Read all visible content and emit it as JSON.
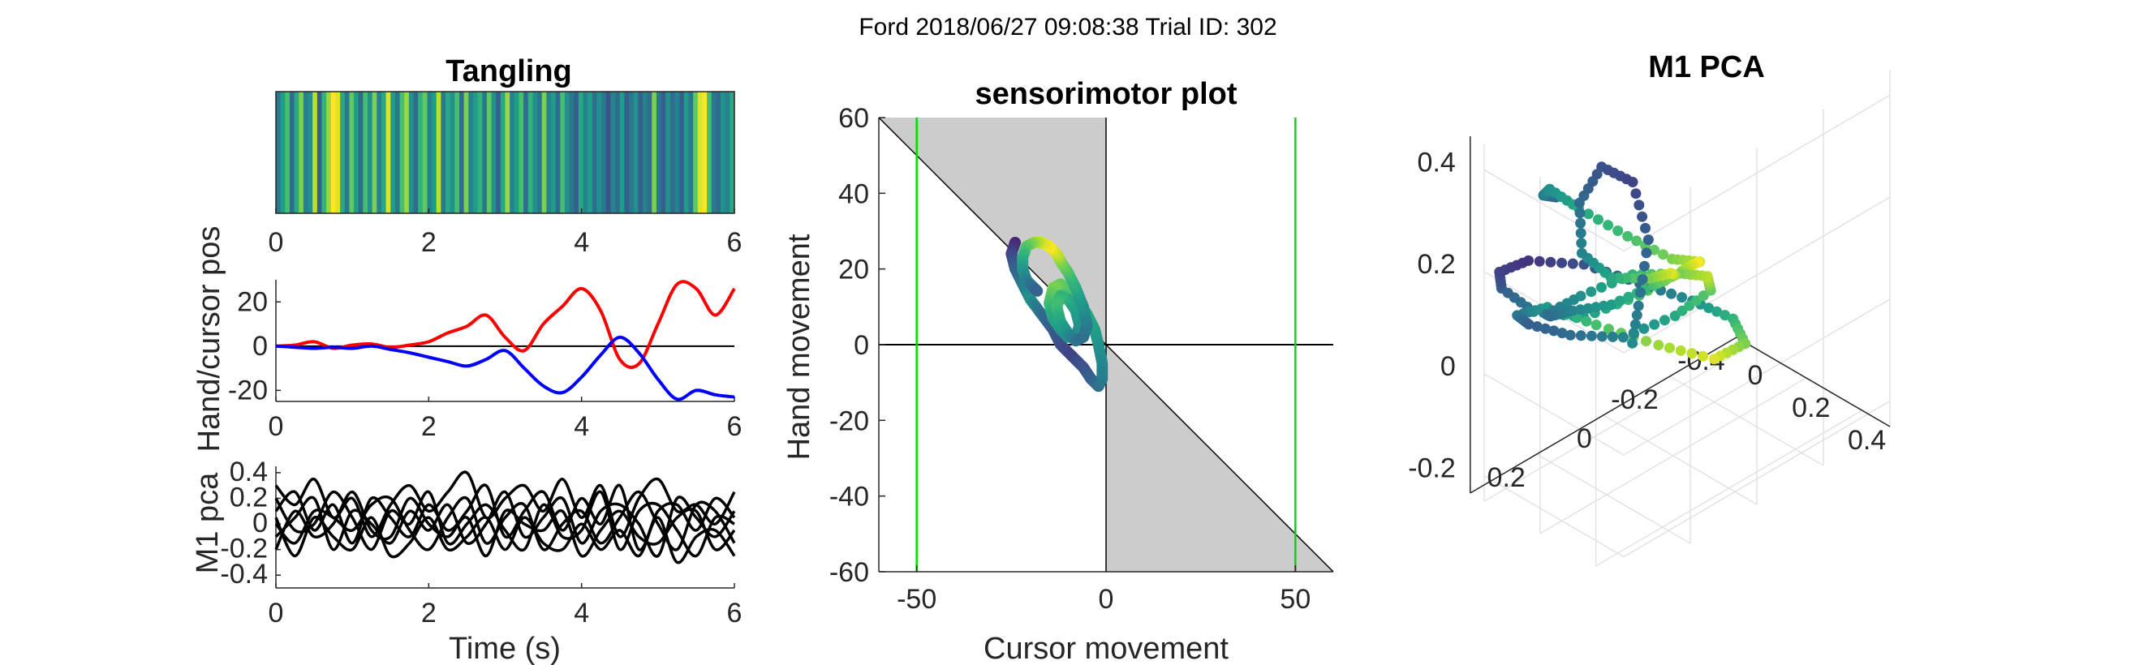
{
  "figure_title": "Ford 2018/06/27 09:08:38 Trial ID: 302",
  "chart_data": [
    {
      "type": "heatmap",
      "title": "Tangling",
      "xlim": [
        0,
        6
      ],
      "xticks": [
        "0",
        "2",
        "4",
        "6"
      ],
      "colormap": "viridis",
      "values": [
        0.4,
        0.55,
        0.7,
        0.35,
        0.6,
        0.8,
        0.45,
        0.5,
        0.9,
        0.3,
        0.65,
        0.85,
        1.0,
        0.95,
        0.6,
        0.4,
        0.75,
        0.55,
        0.35,
        0.7,
        0.5,
        0.8,
        0.45,
        0.6,
        0.95,
        0.55,
        0.4,
        0.7,
        0.85,
        0.5,
        0.35,
        0.65,
        0.75,
        0.45,
        0.55,
        0.9,
        0.4,
        0.6,
        0.5,
        0.7,
        0.35,
        0.8,
        0.45,
        0.55,
        0.65,
        0.4,
        0.75,
        0.5,
        0.3,
        0.6,
        0.85,
        0.45,
        0.55,
        0.7,
        0.35,
        0.65,
        0.5,
        0.4,
        0.8,
        0.45,
        0.55,
        0.35,
        0.7,
        0.5,
        0.4,
        0.3,
        0.6,
        0.45,
        0.55,
        0.35,
        0.5,
        0.4,
        0.25,
        0.45,
        0.35,
        0.55,
        0.3,
        0.4,
        0.5,
        0.3,
        0.45,
        0.35,
        0.8,
        0.4,
        0.3,
        0.5,
        0.35,
        0.45,
        0.3,
        0.55,
        0.4,
        0.75,
        0.95,
        1.0,
        0.7,
        0.4,
        0.35,
        0.5,
        0.45,
        0.6
      ]
    },
    {
      "type": "line",
      "ylabel": "Hand/cursor pos",
      "xlim": [
        0,
        6
      ],
      "ylim": [
        -25,
        30
      ],
      "xticks": [
        "0",
        "2",
        "4",
        "6"
      ],
      "yticks": [
        "-20",
        "0",
        "20"
      ],
      "zero_line": true,
      "series": [
        {
          "color": "#ff0000",
          "x": [
            0,
            0.25,
            0.5,
            0.75,
            1,
            1.25,
            1.5,
            1.75,
            2,
            2.25,
            2.5,
            2.75,
            3,
            3.25,
            3.5,
            3.75,
            4,
            4.25,
            4.5,
            4.75,
            5,
            5.25,
            5.5,
            5.75,
            6
          ],
          "y": [
            0,
            0.5,
            2,
            -1,
            0.5,
            1,
            -0.5,
            0.5,
            2,
            6,
            9,
            14,
            4,
            -2,
            10,
            18,
            26,
            16,
            -6,
            -8,
            10,
            28,
            26,
            14,
            26
          ]
        },
        {
          "color": "#0000ff",
          "x": [
            0,
            0.25,
            0.5,
            0.75,
            1,
            1.25,
            1.5,
            1.75,
            2,
            2.25,
            2.5,
            2.75,
            3,
            3.25,
            3.5,
            3.75,
            4,
            4.25,
            4.5,
            4.75,
            5,
            5.25,
            5.5,
            5.75,
            6
          ],
          "y": [
            0,
            -0.5,
            -1,
            -0.5,
            -1,
            0,
            -1.5,
            -3,
            -5,
            -7,
            -9,
            -6,
            -2,
            -10,
            -18,
            -21,
            -14,
            -4,
            4,
            -3,
            -15,
            -24,
            -20,
            -22,
            -23
          ]
        }
      ]
    },
    {
      "type": "line",
      "ylabel": "M1 pca",
      "xlabel": "Time (s)",
      "xlim": [
        0,
        6
      ],
      "ylim": [
        -0.5,
        0.45
      ],
      "xticks": [
        "0",
        "2",
        "4",
        "6"
      ],
      "yticks": [
        "0.4",
        "0.2",
        "0",
        "-0.2",
        "-0.4"
      ],
      "series_color": "#000000",
      "x": [
        0,
        0.25,
        0.5,
        0.75,
        1,
        1.25,
        1.5,
        1.75,
        2,
        2.25,
        2.5,
        2.75,
        3,
        3.25,
        3.5,
        3.75,
        4,
        4.25,
        4.5,
        4.75,
        5,
        5.25,
        5.5,
        5.75,
        6
      ],
      "series": [
        {
          "y": [
            0.3,
            0.15,
            0.35,
            0.05,
            0.2,
            -0.1,
            0.15,
            0.3,
            0.1,
            0.25,
            0.4,
            0.05,
            0.2,
            0.3,
            0.1,
            0.35,
            0.05,
            0.3,
            -0.1,
            0.2,
            0.35,
            0.1,
            0.15,
            0.0,
            0.25
          ]
        },
        {
          "y": [
            0.1,
            0.25,
            -0.05,
            0.15,
            -0.15,
            0.2,
            0.05,
            -0.1,
            0.15,
            -0.05,
            0.1,
            0.3,
            -0.1,
            0.1,
            0.25,
            -0.05,
            0.2,
            0.0,
            0.3,
            -0.2,
            0.1,
            0.15,
            -0.05,
            0.2,
            0.05
          ]
        },
        {
          "y": [
            -0.1,
            0.05,
            0.2,
            -0.2,
            0.1,
            0.0,
            -0.15,
            0.1,
            -0.05,
            0.15,
            -0.15,
            0.0,
            0.25,
            -0.1,
            0.05,
            0.2,
            -0.15,
            0.1,
            0.15,
            0.0,
            -0.25,
            0.2,
            0.05,
            -0.1,
            0.1
          ]
        },
        {
          "y": [
            0.0,
            -0.15,
            0.1,
            0.05,
            -0.05,
            0.15,
            0.2,
            -0.05,
            -0.2,
            0.05,
            0.2,
            -0.15,
            0.05,
            0.15,
            -0.2,
            0.0,
            0.1,
            -0.15,
            0.05,
            0.25,
            0.0,
            -0.2,
            0.15,
            0.1,
            -0.15
          ]
        },
        {
          "y": [
            0.2,
            -0.05,
            0.0,
            0.25,
            0.05,
            -0.2,
            0.1,
            0.0,
            0.25,
            -0.15,
            0.0,
            0.15,
            -0.05,
            -0.2,
            0.15,
            -0.1,
            -0.05,
            0.25,
            -0.2,
            0.1,
            0.15,
            -0.05,
            -0.25,
            0.05,
            0.0
          ]
        },
        {
          "y": [
            -0.2,
            0.1,
            -0.1,
            0.0,
            0.25,
            -0.05,
            -0.1,
            0.2,
            0.0,
            -0.1,
            0.05,
            -0.25,
            0.1,
            0.0,
            -0.05,
            0.1,
            -0.25,
            -0.05,
            0.1,
            -0.1,
            -0.15,
            0.05,
            0.1,
            -0.2,
            -0.05
          ]
        },
        {
          "y": [
            0.05,
            -0.25,
            0.05,
            -0.1,
            -0.2,
            0.05,
            -0.25,
            -0.15,
            0.05,
            -0.2,
            -0.1,
            0.05,
            -0.2,
            0.05,
            -0.15,
            -0.2,
            0.0,
            -0.2,
            -0.05,
            -0.25,
            0.05,
            -0.3,
            -0.1,
            -0.05,
            -0.25
          ]
        }
      ]
    },
    {
      "type": "scatter",
      "title": "sensorimotor plot",
      "xlabel": "Cursor movement",
      "ylabel": "Hand movement",
      "xlim": [
        -60,
        60
      ],
      "ylim": [
        -60,
        60
      ],
      "xticks": [
        "-50",
        "0",
        "50"
      ],
      "yticks": [
        "60",
        "40",
        "20",
        "0",
        "-20",
        "-40",
        "-60"
      ],
      "vertical_lines_color": "#00dd00",
      "vertical_lines_x": [
        -50,
        50
      ],
      "shaded_regions": "gray region between line y = -x and x = 0",
      "colormap": "viridis",
      "x": [
        -24,
        -25,
        -24,
        -22,
        -20,
        -17,
        -14,
        -12,
        -9,
        -6,
        -4,
        -2,
        -1,
        -1,
        -2,
        -3,
        -5,
        -7,
        -10,
        -12,
        -14,
        -15,
        -14,
        -12,
        -10,
        -8,
        -7,
        -8,
        -10,
        -12,
        -13,
        -12,
        -10,
        -8,
        -6,
        -5,
        -6,
        -8,
        -10,
        -12,
        -13,
        -15,
        -17,
        -19,
        -21,
        -22,
        -22,
        -21,
        -19,
        -18
      ],
      "y": [
        27,
        24,
        20,
        16,
        12,
        8,
        4,
        0,
        -3,
        -6,
        -9,
        -11,
        -9,
        -5,
        0,
        4,
        8,
        11,
        14,
        16,
        15,
        11,
        7,
        4,
        2,
        2,
        5,
        9,
        12,
        13,
        10,
        6,
        3,
        1,
        2,
        5,
        10,
        15,
        19,
        22,
        24,
        26,
        27,
        27,
        26,
        23,
        20,
        17,
        15,
        14
      ],
      "c": [
        0.1,
        0.2,
        0.3,
        0.4,
        0.5,
        0.35,
        0.3,
        0.25,
        0.2,
        0.25,
        0.3,
        0.35,
        0.4,
        0.45,
        0.5,
        0.55,
        0.6,
        0.65,
        0.7,
        0.75,
        0.8,
        0.7,
        0.6,
        0.55,
        0.5,
        0.45,
        0.5,
        0.55,
        0.6,
        0.65,
        0.7,
        0.6,
        0.5,
        0.4,
        0.35,
        0.4,
        0.5,
        0.6,
        0.7,
        0.8,
        0.9,
        1.0,
        0.95,
        0.85,
        0.75,
        0.65,
        0.55,
        0.45,
        0.35,
        0.3
      ]
    },
    {
      "type": "scatter",
      "title": "M1 PCA",
      "projection": "3d",
      "colormap": "viridis",
      "zticks": [
        "0.4",
        "0.2",
        "0",
        "-0.2"
      ],
      "yticks": [
        "0.2",
        "0",
        "-0.2",
        "-0.4"
      ],
      "xticks": [
        "0",
        "0.2",
        "0.4"
      ],
      "x": [
        -0.1,
        -0.05,
        0.02,
        0.1,
        0.18,
        0.22,
        0.2,
        0.12,
        0.04,
        -0.04,
        -0.12,
        -0.18,
        -0.2,
        -0.16,
        -0.08,
        0.0,
        0.08,
        0.15,
        0.2,
        0.22,
        0.18,
        0.1,
        0.02,
        -0.06,
        -0.12,
        -0.15,
        -0.12,
        -0.05,
        0.04,
        0.12,
        0.18,
        0.2,
        0.15,
        0.06,
        -0.04,
        -0.12,
        -0.16,
        -0.14,
        -0.06,
        0.04,
        0.12,
        0.16,
        0.12,
        0.04,
        -0.04,
        -0.08,
        -0.04,
        0.04,
        0.1,
        0.12
      ],
      "y": [
        0.1,
        0.18,
        0.22,
        0.2,
        0.12,
        0.02,
        -0.08,
        -0.14,
        -0.16,
        -0.1,
        0.0,
        0.1,
        0.18,
        0.22,
        0.2,
        0.1,
        0.0,
        -0.1,
        -0.18,
        -0.2,
        -0.14,
        -0.04,
        0.08,
        0.16,
        0.2,
        0.14,
        0.04,
        -0.06,
        -0.14,
        -0.18,
        -0.12,
        -0.02,
        0.08,
        0.16,
        0.18,
        0.1,
        0.0,
        -0.1,
        -0.16,
        -0.14,
        -0.06,
        0.04,
        0.12,
        0.14,
        0.08,
        -0.02,
        -0.08,
        -0.06,
        0.02,
        0.06
      ],
      "z": [
        0.2,
        0.25,
        0.3,
        0.28,
        0.22,
        0.15,
        0.1,
        0.05,
        0.0,
        -0.05,
        -0.08,
        -0.05,
        0.02,
        0.08,
        0.12,
        0.1,
        0.05,
        0.0,
        -0.05,
        -0.1,
        -0.12,
        -0.08,
        -0.02,
        0.02,
        0.0,
        -0.05,
        -0.1,
        -0.12,
        -0.08,
        -0.02,
        0.05,
        0.1,
        0.12,
        0.08,
        0.02,
        -0.04,
        -0.08,
        -0.1,
        -0.06,
        0.0,
        0.06,
        0.1,
        0.12,
        0.15,
        0.2,
        0.22,
        0.18,
        0.1,
        0.02,
        -0.05
      ],
      "c": [
        0.3,
        0.4,
        0.5,
        0.6,
        0.7,
        0.8,
        0.9,
        1.0,
        0.85,
        0.7,
        0.55,
        0.4,
        0.3,
        0.2,
        0.15,
        0.25,
        0.35,
        0.5,
        0.65,
        0.8,
        0.95,
        0.85,
        0.7,
        0.55,
        0.4,
        0.3,
        0.35,
        0.45,
        0.6,
        0.75,
        0.9,
        0.8,
        0.65,
        0.5,
        0.4,
        0.35,
        0.45,
        0.55,
        0.7,
        0.85,
        0.95,
        0.8,
        0.6,
        0.45,
        0.35,
        0.25,
        0.2,
        0.3,
        0.4,
        0.5
      ]
    }
  ]
}
